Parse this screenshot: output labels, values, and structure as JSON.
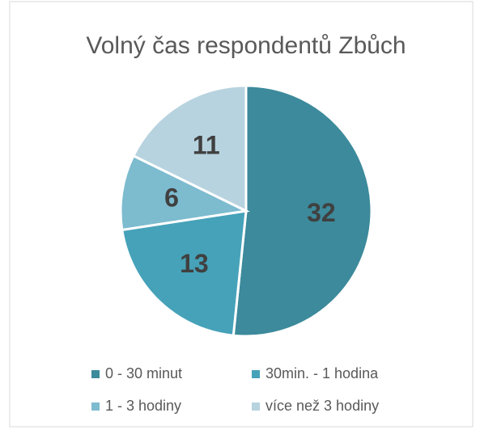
{
  "chart_data": {
    "type": "pie",
    "title": "Volný čas respondentů Zbůch",
    "categories": [
      "0 - 30 minut",
      "30min. - 1 hodina",
      "1 - 3 hodiny",
      "více než 3 hodiny"
    ],
    "values": [
      32,
      13,
      6,
      11
    ],
    "colors": [
      "#3c8a9b",
      "#46a2b9",
      "#7dbbcf",
      "#b7d3df"
    ]
  }
}
